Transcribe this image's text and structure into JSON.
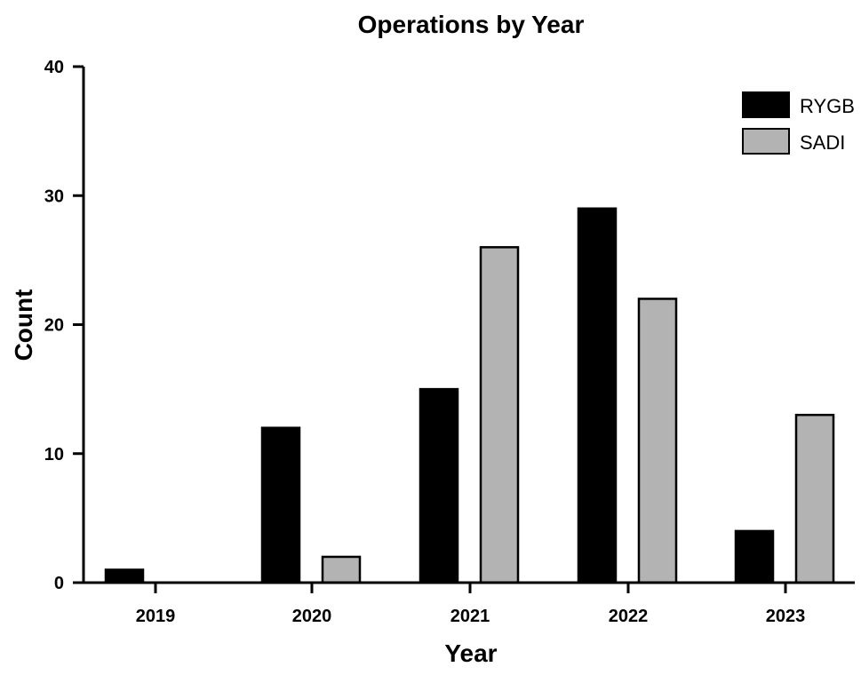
{
  "chart_data": {
    "type": "bar",
    "title": "Operations by Year",
    "xlabel": "Year",
    "ylabel": "Count",
    "categories": [
      "2019",
      "2020",
      "2021",
      "2022",
      "2023"
    ],
    "series": [
      {
        "name": "RYGB",
        "values": [
          1,
          12,
          15,
          29,
          4
        ],
        "color": "#000000"
      },
      {
        "name": "SADI",
        "values": [
          0,
          2,
          26,
          22,
          13
        ],
        "color": "#b3b3b3"
      }
    ],
    "ylim": [
      0,
      40
    ],
    "yticks": [
      "0",
      "10",
      "20",
      "30",
      "40"
    ],
    "grid": false,
    "legend_position": "top-right"
  }
}
